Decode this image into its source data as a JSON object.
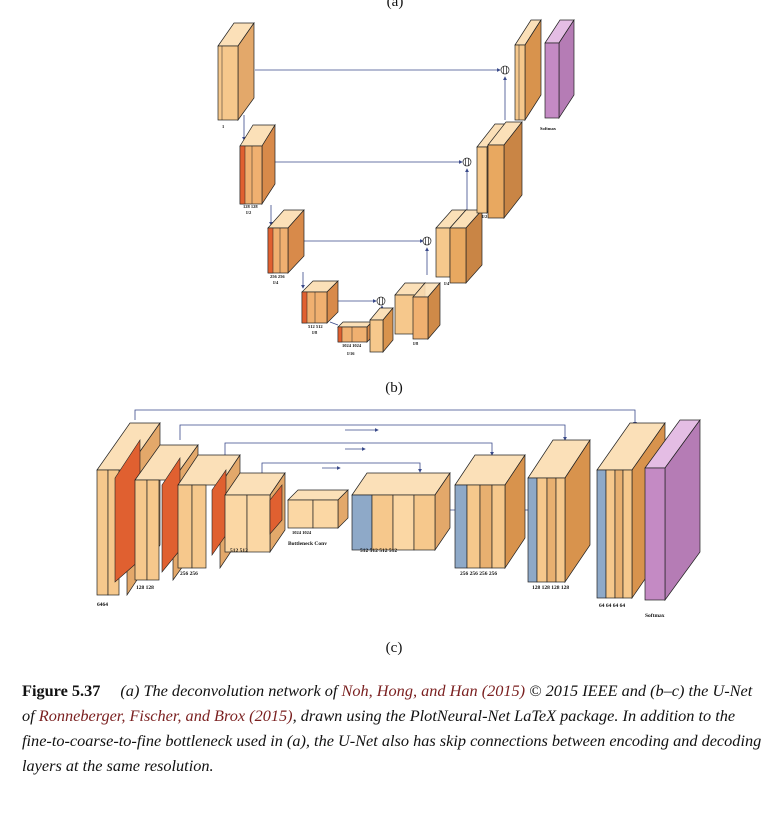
{
  "panels": {
    "a": "(a)",
    "b": "(b)",
    "c": "(c)"
  },
  "panel_a": {
    "softmax_label": "Softmax",
    "level_labels": [
      "1",
      "128 128",
      "256 256",
      "512 512",
      "1024 1024"
    ],
    "scale_labels": [
      "I/2",
      "I/4",
      "I/8",
      "I/16"
    ]
  },
  "panel_b": {
    "bottom_labels": [
      "64",
      "64",
      "128",
      "128",
      "256",
      "256",
      "512",
      "512",
      "1024",
      "1024",
      "512",
      "512",
      "512",
      "512",
      "256",
      "256",
      "256",
      "256",
      "128",
      "128",
      "128",
      "128",
      "64",
      "64",
      "64",
      "64"
    ],
    "first_label": "6464",
    "enc_labels": [
      "128  128",
      "256  256",
      "512  512"
    ],
    "bottleneck_numbers": "1024        1024",
    "bottleneck_label": "Bottleneck Conv",
    "dec_labels": [
      "512   512   512   512",
      "256  256  256  256",
      "128 128 128 128",
      "64 64 64 64"
    ],
    "softmax_label": "Softmax"
  },
  "colors": {
    "conv": "#f6c88c",
    "conv_dark": "#e89b55",
    "relu": "#e06030",
    "unpool": "#8ea9c8",
    "softmax": "#c48ac4",
    "arrow": "#3a4a8a",
    "edge": "#222222"
  },
  "caption": {
    "figure_label": "Figure 5.37",
    "text_1": "(a) The deconvolution network of ",
    "cite_1": "Noh, Hong, and Han (2015)",
    "text_2": " © 2015 IEEE and (b–c) the U-Net of ",
    "cite_2": "Ronneberger, Fischer, and Brox (2015)",
    "text_3": ", drawn using the PlotNeural-Net LaTeX package. In addition to the fine-to-coarse-to-fine bottleneck used in (a), the U-Net also has skip connections between encoding and decoding layers at the same resolution."
  }
}
